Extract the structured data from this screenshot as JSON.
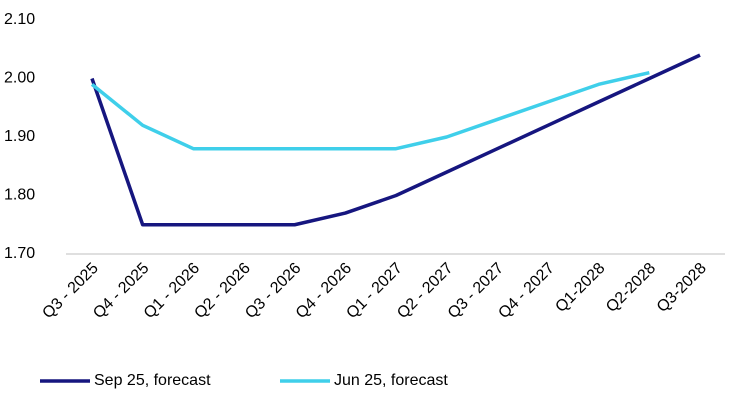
{
  "chart_data": {
    "type": "line",
    "categories": [
      "Q3 - 2025",
      "Q4 - 2025",
      "Q1 - 2026",
      "Q2 - 2026",
      "Q3 - 2026",
      "Q4 - 2026",
      "Q1 - 2027",
      "Q2 - 2027",
      "Q3 - 2027",
      "Q4 - 2027",
      "Q1-2028",
      "Q2-2028",
      "Q3-2028"
    ],
    "series": [
      {
        "name": "Sep 25, forecast",
        "color": "#16167f",
        "values": [
          2.0,
          1.75,
          1.75,
          1.75,
          1.75,
          1.77,
          1.8,
          1.84,
          1.88,
          1.92,
          1.96,
          2.0,
          2.04
        ]
      },
      {
        "name": "Jun 25, forecast",
        "color": "#3fcfea",
        "values": [
          1.99,
          1.92,
          1.88,
          1.88,
          1.88,
          1.88,
          1.88,
          1.9,
          1.93,
          1.96,
          1.99,
          2.01,
          null
        ]
      }
    ],
    "ylim": [
      1.7,
      2.1
    ],
    "yticks": [
      {
        "value": 1.7,
        "label": "1.70"
      },
      {
        "value": 1.8,
        "label": "1.80"
      },
      {
        "value": 1.9,
        "label": "1.90"
      },
      {
        "value": 2.0,
        "label": "2.00"
      },
      {
        "value": 2.1,
        "label": "2.10"
      }
    ],
    "grid": false,
    "legend": "bottom"
  }
}
